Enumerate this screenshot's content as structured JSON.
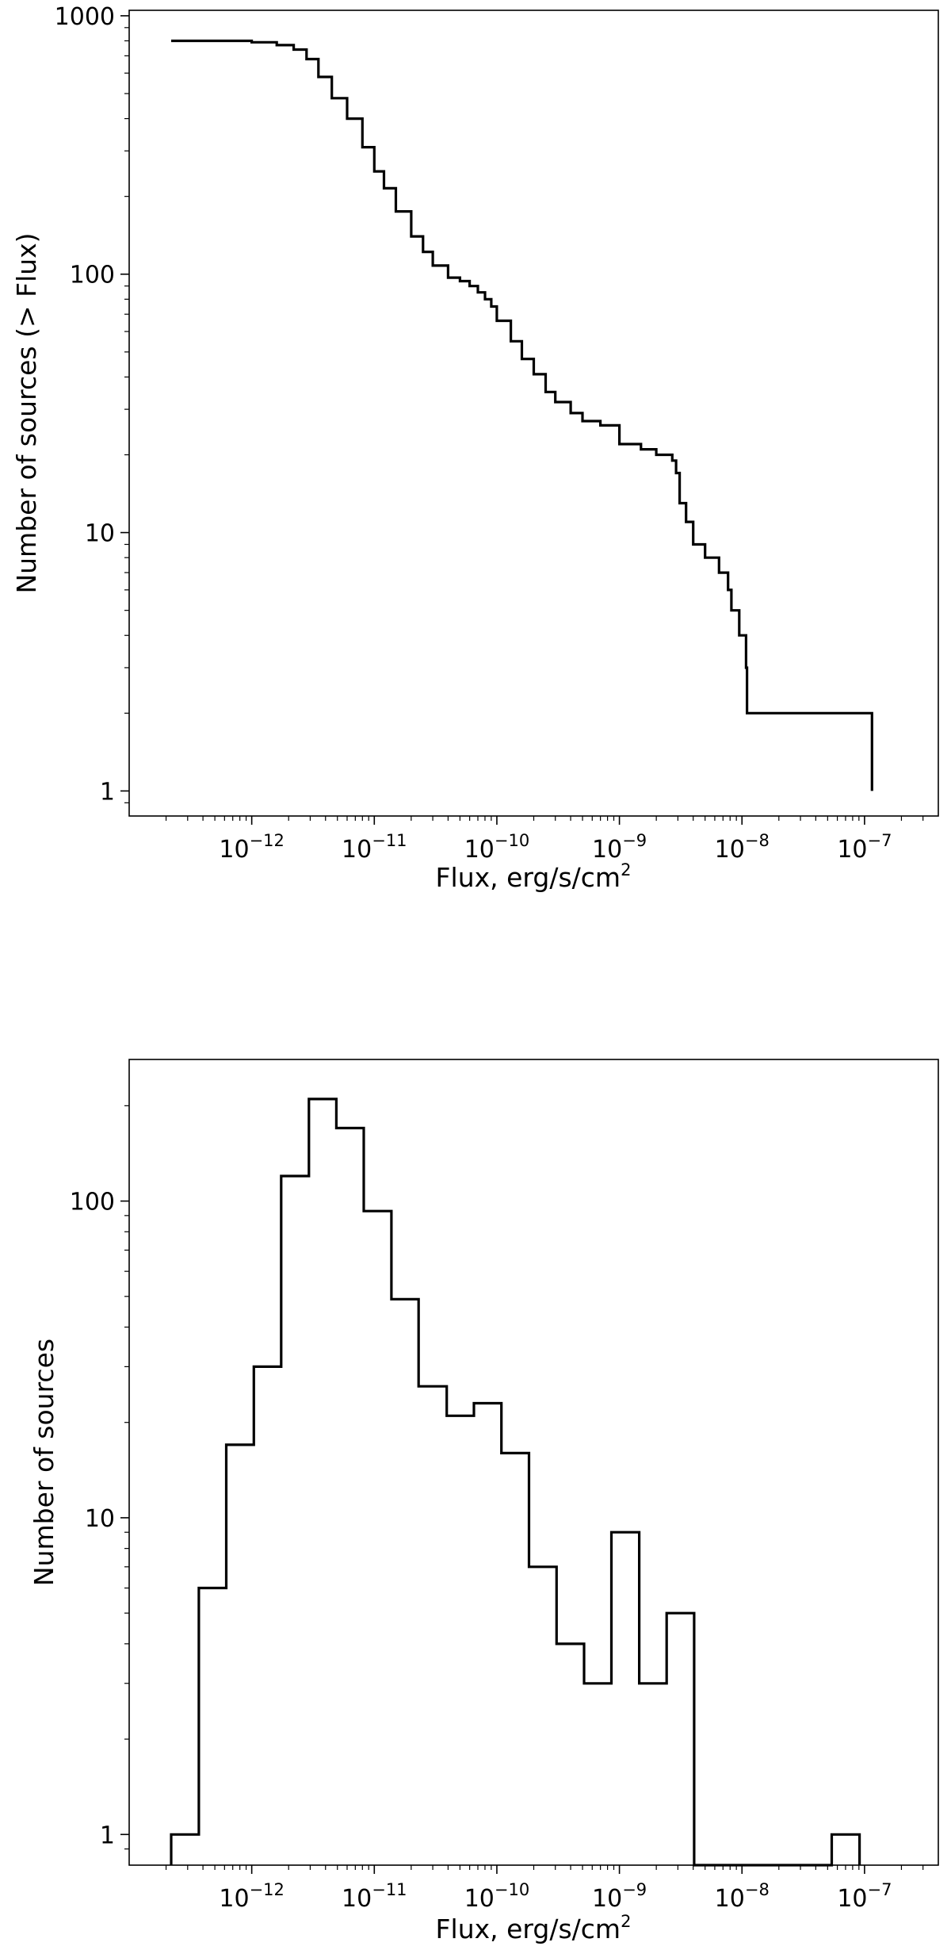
{
  "chart_data": [
    {
      "type": "line",
      "step": true,
      "xlabel_base": "Flux, erg/s/cm",
      "xlabel_sup": "2",
      "ylabel": "Number of sources (> Flux)",
      "xscale": "log",
      "yscale": "log",
      "xlim": [
        1e-13,
        4e-07
      ],
      "ylim": [
        0.8,
        1050
      ],
      "grid": false,
      "xticks": [
        {
          "value": 1e-12,
          "base": "10",
          "exp": "−12"
        },
        {
          "value": 1e-11,
          "base": "10",
          "exp": "−11"
        },
        {
          "value": 1e-10,
          "base": "10",
          "exp": "−10"
        },
        {
          "value": 1e-09,
          "base": "10",
          "exp": "−9"
        },
        {
          "value": 1e-08,
          "base": "10",
          "exp": "−8"
        },
        {
          "value": 1e-07,
          "base": "10",
          "exp": "−7"
        }
      ],
      "yticks": [
        {
          "value": 1,
          "label": "1"
        },
        {
          "value": 10,
          "label": "10"
        },
        {
          "value": 100,
          "label": "100"
        },
        {
          "value": 1000,
          "label": "1000"
        }
      ],
      "x": [
        2.2e-13,
        5e-13,
        1e-12,
        1.6e-12,
        2.2e-12,
        2.8e-12,
        3.5e-12,
        4.5e-12,
        6e-12,
        8e-12,
        1e-11,
        1.2e-11,
        1.5e-11,
        2e-11,
        2.5e-11,
        3e-11,
        4e-11,
        5e-11,
        6e-11,
        7e-11,
        8e-11,
        9e-11,
        1e-10,
        1.3e-10,
        1.6e-10,
        2e-10,
        2.5e-10,
        3e-10,
        4e-10,
        5e-10,
        7e-10,
        1e-09,
        1.5e-09,
        2e-09,
        2.7e-09,
        2.9e-09,
        3.1e-09,
        3.5e-09,
        4e-09,
        5e-09,
        6.5e-09,
        7.7e-09,
        8.2e-09,
        9.5e-09,
        1.08e-08,
        1.1e-08,
        1.15e-07,
        1.15e-07
      ],
      "y": [
        800,
        800,
        790,
        770,
        740,
        680,
        580,
        480,
        400,
        310,
        250,
        215,
        175,
        140,
        122,
        108,
        97,
        94,
        90,
        85,
        80,
        75,
        66,
        55,
        47,
        41,
        35,
        32,
        29,
        27,
        26,
        22,
        21,
        20,
        19,
        17,
        13,
        11,
        9,
        8,
        7,
        6,
        5,
        4,
        3,
        2,
        2,
        1
      ]
    },
    {
      "type": "bar",
      "histogram": true,
      "xlabel_base": "Flux, erg/s/cm",
      "xlabel_sup": "2",
      "ylabel": "Number of sources",
      "xscale": "log",
      "yscale": "log",
      "xlim": [
        1e-13,
        4e-07
      ],
      "ylim": [
        0.8,
        280
      ],
      "grid": false,
      "xticks": [
        {
          "value": 1e-12,
          "base": "10",
          "exp": "−12"
        },
        {
          "value": 1e-11,
          "base": "10",
          "exp": "−11"
        },
        {
          "value": 1e-10,
          "base": "10",
          "exp": "−10"
        },
        {
          "value": 1e-09,
          "base": "10",
          "exp": "−9"
        },
        {
          "value": 1e-08,
          "base": "10",
          "exp": "−8"
        },
        {
          "value": 1e-07,
          "base": "10",
          "exp": "−7"
        }
      ],
      "yticks": [
        {
          "value": 1,
          "label": "1"
        },
        {
          "value": 10,
          "label": "10"
        },
        {
          "value": 100,
          "label": "100"
        }
      ],
      "bins": [
        {
          "x0": 2.2e-13,
          "x1": 3.7e-13,
          "count": 1
        },
        {
          "x0": 3.7e-13,
          "x1": 6.2e-13,
          "count": 6
        },
        {
          "x0": 6.2e-13,
          "x1": 1.04e-12,
          "count": 17
        },
        {
          "x0": 1.04e-12,
          "x1": 1.74e-12,
          "count": 30
        },
        {
          "x0": 1.74e-12,
          "x1": 2.93e-12,
          "count": 120
        },
        {
          "x0": 2.93e-12,
          "x1": 4.9e-12,
          "count": 210
        },
        {
          "x0": 4.9e-12,
          "x1": 8.2e-12,
          "count": 170
        },
        {
          "x0": 8.2e-12,
          "x1": 1.38e-11,
          "count": 93
        },
        {
          "x0": 1.38e-11,
          "x1": 2.3e-11,
          "count": 49
        },
        {
          "x0": 2.3e-11,
          "x1": 3.9e-11,
          "count": 26
        },
        {
          "x0": 3.9e-11,
          "x1": 6.5e-11,
          "count": 21
        },
        {
          "x0": 6.5e-11,
          "x1": 1.09e-10,
          "count": 23
        },
        {
          "x0": 1.09e-10,
          "x1": 1.83e-10,
          "count": 16
        },
        {
          "x0": 1.83e-10,
          "x1": 3.07e-10,
          "count": 7
        },
        {
          "x0": 3.07e-10,
          "x1": 5.15e-10,
          "count": 4
        },
        {
          "x0": 5.15e-10,
          "x1": 8.6e-10,
          "count": 3
        },
        {
          "x0": 8.6e-10,
          "x1": 1.45e-09,
          "count": 9
        },
        {
          "x0": 1.45e-09,
          "x1": 2.43e-09,
          "count": 3
        },
        {
          "x0": 2.43e-09,
          "x1": 4.07e-09,
          "count": 5
        },
        {
          "x0": 4.07e-09,
          "x1": 6.8e-09,
          "count": 0
        },
        {
          "x0": 6.8e-09,
          "x1": 1.14e-08,
          "count": 0
        },
        {
          "x0": 1.14e-08,
          "x1": 1.92e-08,
          "count": 0
        },
        {
          "x0": 1.92e-08,
          "x1": 3.2e-08,
          "count": 0
        },
        {
          "x0": 3.2e-08,
          "x1": 5.4e-08,
          "count": 0
        },
        {
          "x0": 5.4e-08,
          "x1": 9.1e-08,
          "count": 1
        }
      ]
    }
  ]
}
